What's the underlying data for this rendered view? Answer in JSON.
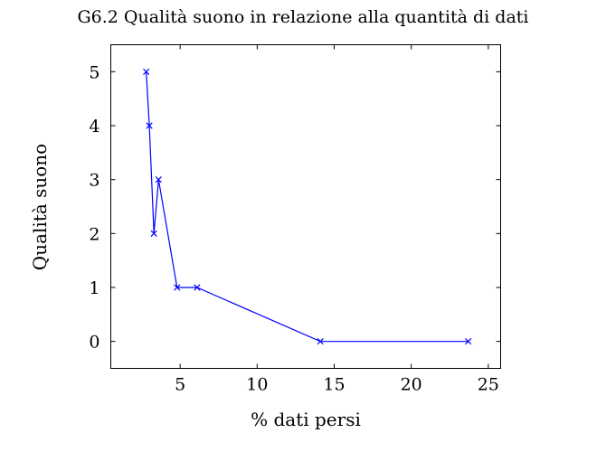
{
  "chart_data": {
    "type": "line",
    "title": "G6.2 Qualità suono in relazione alla quantità di dati",
    "xlabel": "% dati persi",
    "ylabel": "Qualità suono",
    "xlim": [
      0.5,
      25.8
    ],
    "ylim": [
      -0.5,
      5.5
    ],
    "xticks": [
      5,
      10,
      15,
      20,
      25
    ],
    "yticks": [
      0,
      1,
      2,
      3,
      4,
      5
    ],
    "grid": false,
    "series": [
      {
        "color": "#0000ff",
        "marker": "x",
        "points": [
          {
            "x": 2.8,
            "y": 5
          },
          {
            "x": 3.0,
            "y": 4
          },
          {
            "x": 3.3,
            "y": 2
          },
          {
            "x": 3.6,
            "y": 3
          },
          {
            "x": 4.8,
            "y": 1
          },
          {
            "x": 6.1,
            "y": 1
          },
          {
            "x": 14.1,
            "y": 0
          },
          {
            "x": 23.7,
            "y": 0
          }
        ]
      }
    ]
  }
}
